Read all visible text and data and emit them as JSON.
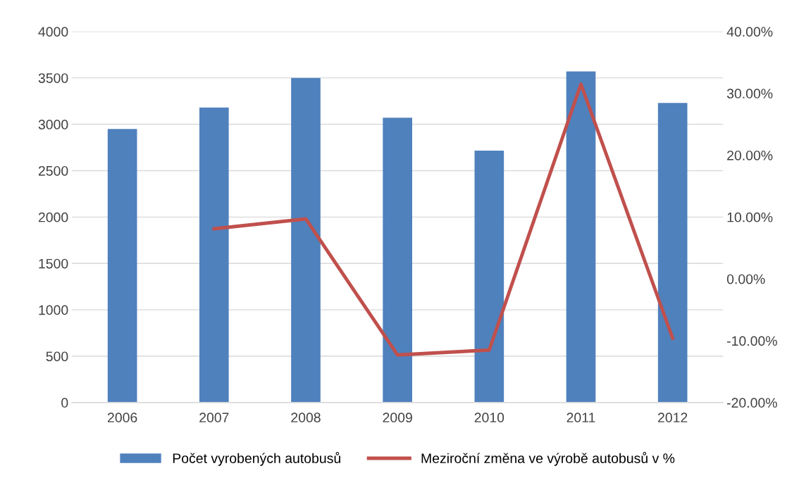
{
  "chart_data": {
    "type": "bar",
    "categories": [
      "2006",
      "2007",
      "2008",
      "2009",
      "2010",
      "2011",
      "2012"
    ],
    "series": [
      {
        "name": "Počet vyrobených autobusů",
        "color": "#4f81bd",
        "values": [
          2950,
          3180,
          3500,
          3070,
          2715,
          3570,
          3230
        ]
      },
      {
        "name": "Meziroční změna ve výrobě autobusů v %",
        "type": "line",
        "axis": "y2",
        "color": "#c0504d",
        "values": [
          null,
          8.1,
          9.7,
          -12.3,
          -11.5,
          31.5,
          -9.6
        ]
      }
    ],
    "ylim": [
      0,
      4000
    ],
    "yticks": [
      0,
      500,
      1000,
      1500,
      2000,
      2500,
      3000,
      3500,
      4000
    ],
    "y2lim": [
      -20,
      40
    ],
    "y2ticks": [
      {
        "value": -20,
        "label": "-20.00%"
      },
      {
        "value": -10,
        "label": "-10.00%"
      },
      {
        "value": 0,
        "label": "0.00%"
      },
      {
        "value": 10,
        "label": "10.00%"
      },
      {
        "value": 20,
        "label": "20.00%"
      },
      {
        "value": 30,
        "label": "30.00%"
      },
      {
        "value": 40,
        "label": "40.00%"
      }
    ],
    "grid": "y",
    "legend": "bottom"
  }
}
